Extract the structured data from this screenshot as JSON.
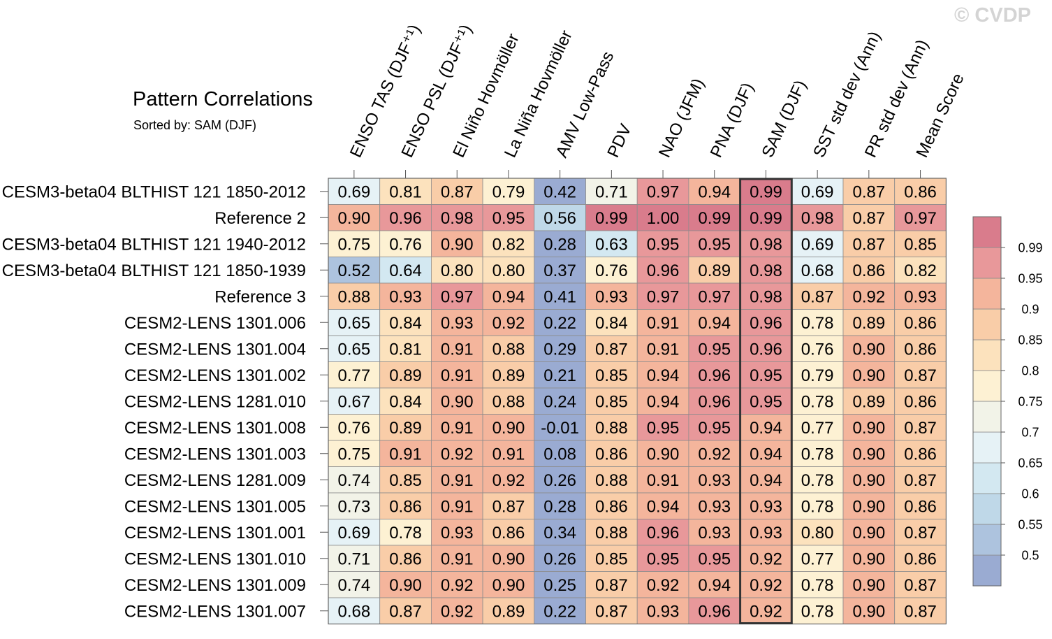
{
  "watermark": "© CVDP",
  "chart_data": {
    "type": "heatmap",
    "title": "Pattern Correlations",
    "subtitle": "Sorted by: SAM (DJF)",
    "columns": [
      "ENSO TAS (DJF⁺¹)",
      "ENSO PSL (DJF⁺¹)",
      "El Niño Hovmöller",
      "La Niña Hovmöller",
      "AMV Low-Pass",
      "PDV",
      "NAO (JFM)",
      "PNA (DJF)",
      "SAM (DJF)",
      "SST std dev (Ann)",
      "PR std dev (Ann)",
      "Mean Score"
    ],
    "highlighted_column": "SAM (DJF)",
    "rows": [
      {
        "label": "CESM3-beta04 BLTHIST 121 1850-2012",
        "values": [
          "0.69",
          "0.81",
          "0.87",
          "0.79",
          "0.42",
          "0.71",
          "0.97",
          "0.94",
          "0.99",
          "0.69",
          "0.87",
          "0.86"
        ]
      },
      {
        "label": "Reference 2",
        "values": [
          "0.90",
          "0.96",
          "0.98",
          "0.95",
          "0.56",
          "0.99",
          "1.00",
          "0.99",
          "0.99",
          "0.98",
          "0.87",
          "0.97"
        ]
      },
      {
        "label": "CESM3-beta04 BLTHIST 121 1940-2012",
        "values": [
          "0.75",
          "0.76",
          "0.90",
          "0.82",
          "0.28",
          "0.63",
          "0.95",
          "0.95",
          "0.98",
          "0.69",
          "0.87",
          "0.85"
        ]
      },
      {
        "label": "CESM3-beta04 BLTHIST 121 1850-1939",
        "values": [
          "0.52",
          "0.64",
          "0.80",
          "0.80",
          "0.37",
          "0.76",
          "0.96",
          "0.89",
          "0.98",
          "0.68",
          "0.86",
          "0.82"
        ]
      },
      {
        "label": "Reference 3",
        "values": [
          "0.88",
          "0.93",
          "0.97",
          "0.94",
          "0.41",
          "0.93",
          "0.97",
          "0.97",
          "0.98",
          "0.87",
          "0.92",
          "0.93"
        ]
      },
      {
        "label": "CESM2-LENS 1301.006",
        "values": [
          "0.65",
          "0.84",
          "0.93",
          "0.92",
          "0.22",
          "0.84",
          "0.91",
          "0.94",
          "0.96",
          "0.78",
          "0.89",
          "0.86"
        ]
      },
      {
        "label": "CESM2-LENS 1301.004",
        "values": [
          "0.65",
          "0.81",
          "0.91",
          "0.88",
          "0.29",
          "0.87",
          "0.91",
          "0.95",
          "0.96",
          "0.76",
          "0.90",
          "0.86"
        ]
      },
      {
        "label": "CESM2-LENS 1301.002",
        "values": [
          "0.77",
          "0.89",
          "0.91",
          "0.89",
          "0.21",
          "0.85",
          "0.94",
          "0.96",
          "0.95",
          "0.79",
          "0.90",
          "0.87"
        ]
      },
      {
        "label": "CESM2-LENS 1281.010",
        "values": [
          "0.67",
          "0.84",
          "0.90",
          "0.88",
          "0.24",
          "0.85",
          "0.94",
          "0.96",
          "0.95",
          "0.78",
          "0.89",
          "0.86"
        ]
      },
      {
        "label": "CESM2-LENS 1301.008",
        "values": [
          "0.76",
          "0.89",
          "0.91",
          "0.90",
          "-0.01",
          "0.88",
          "0.95",
          "0.95",
          "0.94",
          "0.77",
          "0.90",
          "0.87"
        ]
      },
      {
        "label": "CESM2-LENS 1301.003",
        "values": [
          "0.75",
          "0.91",
          "0.92",
          "0.91",
          "0.08",
          "0.86",
          "0.90",
          "0.92",
          "0.94",
          "0.78",
          "0.90",
          "0.86"
        ]
      },
      {
        "label": "CESM2-LENS 1281.009",
        "values": [
          "0.74",
          "0.85",
          "0.91",
          "0.92",
          "0.26",
          "0.88",
          "0.91",
          "0.93",
          "0.94",
          "0.78",
          "0.90",
          "0.87"
        ]
      },
      {
        "label": "CESM2-LENS 1301.005",
        "values": [
          "0.73",
          "0.86",
          "0.91",
          "0.87",
          "0.28",
          "0.86",
          "0.94",
          "0.93",
          "0.93",
          "0.78",
          "0.90",
          "0.86"
        ]
      },
      {
        "label": "CESM2-LENS 1301.001",
        "values": [
          "0.69",
          "0.78",
          "0.93",
          "0.86",
          "0.34",
          "0.88",
          "0.96",
          "0.93",
          "0.93",
          "0.80",
          "0.90",
          "0.87"
        ]
      },
      {
        "label": "CESM2-LENS 1301.010",
        "values": [
          "0.71",
          "0.86",
          "0.91",
          "0.90",
          "0.26",
          "0.85",
          "0.95",
          "0.95",
          "0.92",
          "0.77",
          "0.90",
          "0.86"
        ]
      },
      {
        "label": "CESM2-LENS 1301.009",
        "values": [
          "0.74",
          "0.90",
          "0.92",
          "0.90",
          "0.25",
          "0.87",
          "0.92",
          "0.94",
          "0.92",
          "0.78",
          "0.90",
          "0.87"
        ]
      },
      {
        "label": "CESM2-LENS 1301.007",
        "values": [
          "0.68",
          "0.87",
          "0.92",
          "0.89",
          "0.22",
          "0.87",
          "0.93",
          "0.96",
          "0.92",
          "0.78",
          "0.90",
          "0.87"
        ]
      }
    ],
    "colorbar": {
      "labels": [
        "0.99",
        "0.95",
        "0.9",
        "0.85",
        "0.8",
        "0.75",
        "0.7",
        "0.65",
        "0.6",
        "0.55",
        "0.5"
      ],
      "bounds": [
        0.5,
        0.55,
        0.6,
        0.65,
        0.7,
        0.75,
        0.8,
        0.85,
        0.9,
        0.95,
        0.99
      ],
      "colors": [
        "#9aabd2",
        "#adc3de",
        "#bfd8e8",
        "#d3e8f1",
        "#e6f2f6",
        "#f2f3e8",
        "#fdf1d3",
        "#fce2bd",
        "#f9cda8",
        "#f4b59c",
        "#e8989a",
        "#d97c8c"
      ]
    }
  }
}
